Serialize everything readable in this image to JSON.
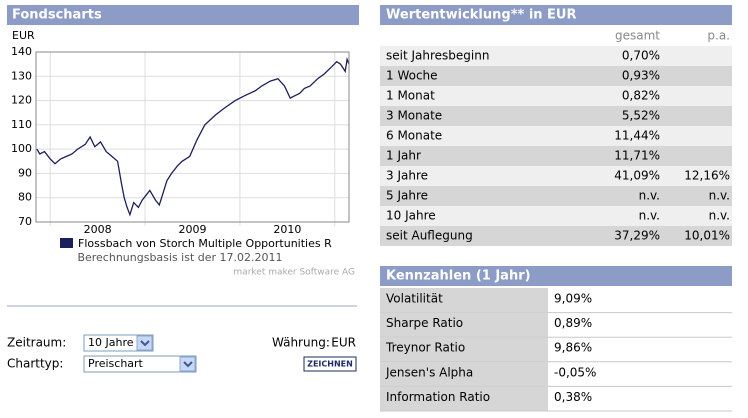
{
  "left_panel": {
    "title": "Fondscharts"
  },
  "chart_data": {
    "type": "line",
    "y_label": "EUR",
    "x": [
      2007.86,
      2007.89,
      2007.94,
      2008.0,
      2008.05,
      2008.11,
      2008.17,
      2008.23,
      2008.29,
      2008.37,
      2008.42,
      2008.47,
      2008.53,
      2008.59,
      2008.65,
      2008.71,
      2008.75,
      2008.78,
      2008.81,
      2008.84,
      2008.88,
      2008.93,
      2008.97,
      2009.01,
      2009.05,
      2009.11,
      2009.15,
      2009.19,
      2009.23,
      2009.28,
      2009.34,
      2009.39,
      2009.47,
      2009.55,
      2009.63,
      2009.74,
      2009.84,
      2009.95,
      2010.05,
      2010.16,
      2010.23,
      2010.32,
      2010.4,
      2010.47,
      2010.53,
      2010.58,
      2010.63,
      2010.68,
      2010.74,
      2010.82,
      2010.89,
      2010.97,
      2011.02,
      2011.06,
      2011.11,
      2011.13,
      2011.15
    ],
    "series": [
      {
        "name": "Flossbach von Storch Multiple Opportunities  R",
        "color": "#1c1f5e",
        "values": [
          100,
          98,
          99,
          96,
          94,
          96,
          97,
          98,
          100,
          102,
          105,
          101,
          103,
          99,
          97,
          95,
          86,
          80,
          76,
          73,
          78,
          76,
          79,
          81,
          83,
          79,
          77,
          82,
          87,
          90,
          93,
          95,
          97,
          104,
          110,
          114,
          117,
          120,
          122,
          124,
          126,
          128,
          129,
          126,
          121,
          122,
          123,
          125,
          126,
          129,
          131,
          134,
          136,
          135,
          132,
          137,
          135
        ]
      }
    ],
    "xlim": [
      2007.85,
      2011.15
    ],
    "xticks": [
      {
        "value": 2008.5,
        "label": "2008"
      },
      {
        "value": 2009.5,
        "label": "2009"
      },
      {
        "value": 2010.5,
        "label": "2010"
      }
    ],
    "xgrid": [
      2008,
      2009,
      2010,
      2011
    ],
    "ylim": [
      70,
      140
    ],
    "yticks": [
      70,
      80,
      90,
      100,
      110,
      120,
      130,
      140
    ],
    "grid": true,
    "subtitle": "Berechnungsbasis ist der 17.02.2011",
    "source": "market maker Software AG"
  },
  "form": {
    "zeitraum_label": "Zeitraum:",
    "zeitraum_value": "10 Jahre",
    "waehrung_label": "Währung:",
    "waehrung_value": "EUR",
    "charttyp_label": "Charttyp:",
    "charttyp_value": "Preischart",
    "button": "ZEICHNEN"
  },
  "performance": {
    "title": "Wertentwicklung** in EUR",
    "columns": [
      "gesamt",
      "p.a."
    ],
    "rows": [
      [
        "seit Jahresbeginn",
        "0,70%",
        null
      ],
      [
        "1 Woche",
        "0,93%",
        null
      ],
      [
        "1 Monat",
        "0,82%",
        null
      ],
      [
        "3 Monate",
        "5,52%",
        null
      ],
      [
        "6 Monate",
        "11,44%",
        null
      ],
      [
        "1 Jahr",
        "11,71%",
        null
      ],
      [
        "3 Jahre",
        "41,09%",
        "12,16%"
      ],
      [
        "5 Jahre",
        "n.v.",
        "n.v."
      ],
      [
        "10 Jahre",
        "n.v.",
        "n.v."
      ],
      [
        "seit Auflegung",
        "37,29%",
        "10,01%"
      ]
    ]
  },
  "kennzahlen": {
    "title": "Kennzahlen (1 Jahr)",
    "rows": [
      [
        "Volatilität",
        "9,09%"
      ],
      [
        "Sharpe Ratio",
        "0,89%"
      ],
      [
        "Treynor Ratio",
        "9,86%"
      ],
      [
        "Jensen's Alpha",
        "-0,05%"
      ],
      [
        "Information Ratio",
        "0,38%"
      ]
    ]
  }
}
